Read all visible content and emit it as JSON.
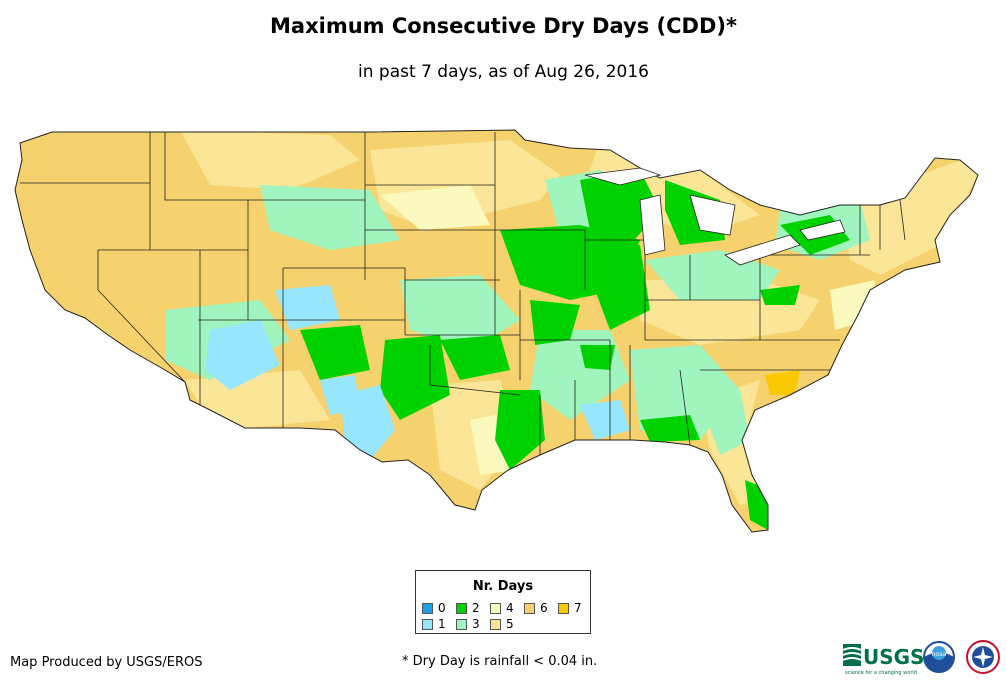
{
  "title": "Maximum Consecutive Dry Days (CDD)*",
  "subtitle": "in past 7 days, as of Aug 26, 2016",
  "legend": {
    "title": "Nr. Days",
    "items": [
      {
        "label": "0",
        "color": "#1ea0e6"
      },
      {
        "label": "1",
        "color": "#96e6ff"
      },
      {
        "label": "2",
        "color": "#00d200"
      },
      {
        "label": "3",
        "color": "#a0f5be"
      },
      {
        "label": "4",
        "color": "#fafabe"
      },
      {
        "label": "5",
        "color": "#fae696"
      },
      {
        "label": "6",
        "color": "#f5d26e"
      },
      {
        "label": "7",
        "color": "#fac800"
      }
    ]
  },
  "credit": "Map Produced by USGS/EROS",
  "footnote": "* Dry Day is rainfall < 0.04 in.",
  "logos": {
    "usgs_text": "USGS",
    "usgs_tagline": "science for a changing world",
    "agency_2": "noaa",
    "agency_3": "NATIONAL WEATHER SERVICE"
  }
}
